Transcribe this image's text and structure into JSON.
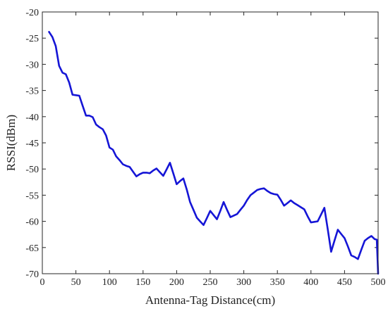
{
  "chart_data": {
    "type": "line",
    "xlabel": "Antenna-Tag Distance(cm)",
    "ylabel": "RSSI(dBm)",
    "xlim": [
      0,
      500
    ],
    "ylim": [
      -70,
      -20
    ],
    "xticks": [
      0,
      50,
      100,
      150,
      200,
      250,
      300,
      350,
      400,
      450,
      500
    ],
    "yticks": [
      -20,
      -25,
      -30,
      -35,
      -40,
      -45,
      -50,
      -55,
      -60,
      -65,
      -70
    ],
    "grid": false,
    "series": [
      {
        "color": "#1515d6",
        "x": [
          10,
          15,
          20,
          25,
          30,
          35,
          40,
          45,
          50,
          55,
          60,
          65,
          70,
          75,
          80,
          85,
          90,
          95,
          100,
          105,
          110,
          115,
          120,
          125,
          130,
          135,
          140,
          145,
          150,
          155,
          160,
          165,
          170,
          175,
          180,
          185,
          190,
          195,
          200,
          205,
          210,
          215,
          220,
          225,
          230,
          235,
          240,
          245,
          250,
          255,
          260,
          265,
          270,
          275,
          280,
          285,
          290,
          295,
          300,
          305,
          310,
          315,
          320,
          325,
          330,
          335,
          340,
          345,
          350,
          355,
          360,
          365,
          370,
          375,
          380,
          385,
          390,
          395,
          400,
          405,
          410,
          415,
          420,
          425,
          430,
          435,
          440,
          445,
          450,
          455,
          460,
          465,
          470,
          475,
          480,
          485,
          490,
          495,
          498,
          500
        ],
        "y": [
          -23.8,
          -24.8,
          -26.5,
          -30.3,
          -31.6,
          -31.9,
          -33.5,
          -35.8,
          -35.9,
          -36.0,
          -37.9,
          -39.8,
          -39.8,
          -40.1,
          -41.5,
          -42.0,
          -42.4,
          -43.6,
          -45.9,
          -46.3,
          -47.6,
          -48.3,
          -49.1,
          -49.4,
          -49.6,
          -50.5,
          -51.4,
          -51.0,
          -50.7,
          -50.7,
          -50.8,
          -50.3,
          -49.9,
          -50.6,
          -51.3,
          -50.1,
          -48.8,
          -50.8,
          -52.9,
          -52.3,
          -51.8,
          -53.9,
          -56.3,
          -57.8,
          -59.3,
          -60.0,
          -60.7,
          -59.4,
          -58.0,
          -58.8,
          -59.6,
          -58.0,
          -56.3,
          -57.8,
          -59.2,
          -58.9,
          -58.6,
          -57.8,
          -57.0,
          -55.9,
          -55.0,
          -54.5,
          -54.0,
          -53.8,
          -53.7,
          -54.2,
          -54.6,
          -54.8,
          -54.9,
          -55.9,
          -57.0,
          -56.5,
          -56.0,
          -56.5,
          -56.9,
          -57.3,
          -57.7,
          -59.0,
          -60.2,
          -60.1,
          -60.0,
          -58.7,
          -57.4,
          -61.5,
          -65.8,
          -63.7,
          -61.6,
          -62.4,
          -63.2,
          -64.8,
          -66.5,
          -66.8,
          -67.2,
          -65.4,
          -63.7,
          -63.2,
          -62.8,
          -63.4,
          -63.5,
          -70.0
        ]
      }
    ]
  }
}
